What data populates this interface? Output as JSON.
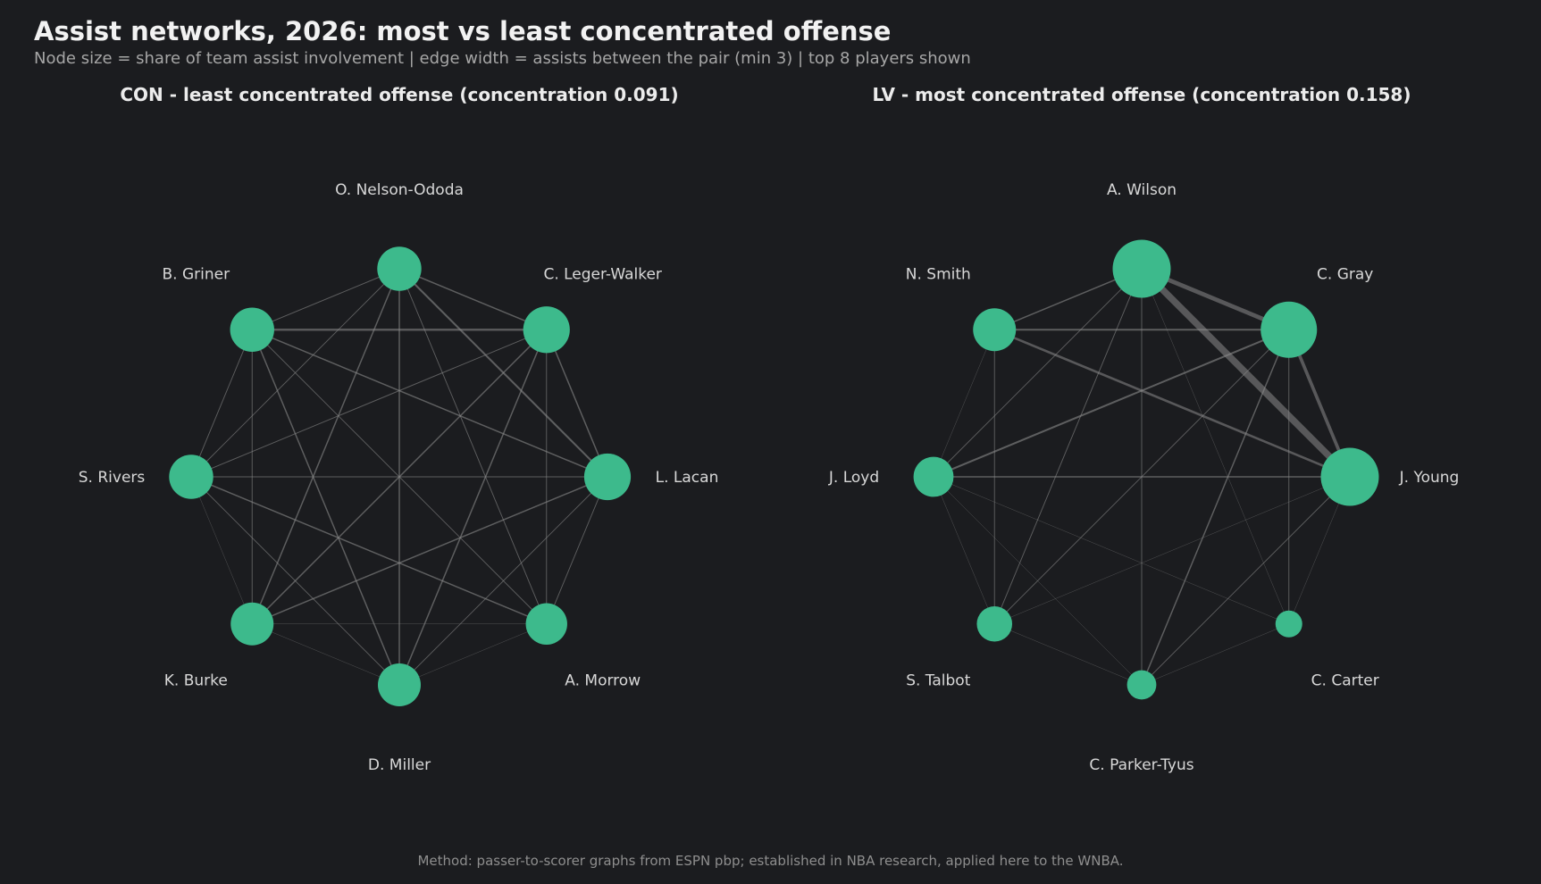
{
  "title": "Assist networks, 2026: most vs least concentrated offense",
  "subtitle": "Node size = share of team assist involvement | edge width = assists between the pair (min 3) | top 8 players shown",
  "footer": "Method: passer-to-scorer graphs from ESPN pbp; established in NBA research, applied here to the WNBA.",
  "colors": {
    "background": "#1b1c1f",
    "node": "#3dba8c",
    "edge": "#8a8a8a"
  },
  "panels": [
    {
      "team": "CON",
      "title": "CON - least concentrated offense (concentration 0.091)",
      "players": [
        {
          "name": "O. Nelson-Ododa",
          "share": 0.13
        },
        {
          "name": "C. Leger-Walker",
          "share": 0.15
        },
        {
          "name": "L. Lacan",
          "share": 0.15
        },
        {
          "name": "A. Morrow",
          "share": 0.11
        },
        {
          "name": "D. Miller",
          "share": 0.12
        },
        {
          "name": "K. Burke",
          "share": 0.12
        },
        {
          "name": "S. Rivers",
          "share": 0.13
        },
        {
          "name": "B. Griner",
          "share": 0.13
        }
      ],
      "edges": [
        {
          "a": "B. Griner",
          "b": "C. Leger-Walker",
          "assists": 7
        },
        {
          "a": "C. Leger-Walker",
          "b": "L. Lacan",
          "assists": 5
        },
        {
          "a": "O. Nelson-Ododa",
          "b": "L. Lacan",
          "assists": 6
        },
        {
          "a": "O. Nelson-Ododa",
          "b": "C. Leger-Walker",
          "assists": 5
        },
        {
          "a": "O. Nelson-Ododa",
          "b": "B. Griner",
          "assists": 4
        },
        {
          "a": "O. Nelson-Ododa",
          "b": "D. Miller",
          "assists": 5
        },
        {
          "a": "O. Nelson-Ododa",
          "b": "K. Burke",
          "assists": 5
        },
        {
          "a": "O. Nelson-Ododa",
          "b": "A. Morrow",
          "assists": 4
        },
        {
          "a": "O. Nelson-Ododa",
          "b": "S. Rivers",
          "assists": 4
        },
        {
          "a": "B. Griner",
          "b": "S. Rivers",
          "assists": 4
        },
        {
          "a": "B. Griner",
          "b": "K. Burke",
          "assists": 4
        },
        {
          "a": "B. Griner",
          "b": "D. Miller",
          "assists": 5
        },
        {
          "a": "B. Griner",
          "b": "A. Morrow",
          "assists": 4
        },
        {
          "a": "B. Griner",
          "b": "L. Lacan",
          "assists": 5
        },
        {
          "a": "C. Leger-Walker",
          "b": "A. Morrow",
          "assists": 4
        },
        {
          "a": "C. Leger-Walker",
          "b": "D. Miller",
          "assists": 5
        },
        {
          "a": "C. Leger-Walker",
          "b": "K. Burke",
          "assists": 5
        },
        {
          "a": "C. Leger-Walker",
          "b": "S. Rivers",
          "assists": 4
        },
        {
          "a": "S. Rivers",
          "b": "L. Lacan",
          "assists": 4
        },
        {
          "a": "S. Rivers",
          "b": "K. Burke",
          "assists": 3
        },
        {
          "a": "S. Rivers",
          "b": "D. Miller",
          "assists": 4
        },
        {
          "a": "S. Rivers",
          "b": "A. Morrow",
          "assists": 5
        },
        {
          "a": "L. Lacan",
          "b": "A. Morrow",
          "assists": 4
        },
        {
          "a": "L. Lacan",
          "b": "D. Miller",
          "assists": 4
        },
        {
          "a": "L. Lacan",
          "b": "K. Burke",
          "assists": 5
        },
        {
          "a": "K. Burke",
          "b": "D. Miller",
          "assists": 3
        },
        {
          "a": "K. Burke",
          "b": "A. Morrow",
          "assists": 3
        },
        {
          "a": "A. Morrow",
          "b": "D. Miller",
          "assists": 3
        }
      ]
    },
    {
      "team": "LV",
      "title": "LV - most concentrated offense (concentration 0.158)",
      "players": [
        {
          "name": "A. Wilson",
          "share": 0.26
        },
        {
          "name": "C. Gray",
          "share": 0.24
        },
        {
          "name": "J. Young",
          "share": 0.26
        },
        {
          "name": "C. Carter",
          "share": 0.03
        },
        {
          "name": "C. Parker-Tyus",
          "share": 0.04
        },
        {
          "name": "S. Talbot",
          "share": 0.07
        },
        {
          "name": "J. Loyd",
          "share": 0.1
        },
        {
          "name": "N. Smith",
          "share": 0.12
        }
      ],
      "edges": [
        {
          "a": "A. Wilson",
          "b": "J. Young",
          "assists": 16
        },
        {
          "a": "A. Wilson",
          "b": "C. Gray",
          "assists": 11
        },
        {
          "a": "C. Gray",
          "b": "J. Young",
          "assists": 9
        },
        {
          "a": "N. Smith",
          "b": "J. Young",
          "assists": 7
        },
        {
          "a": "N. Smith",
          "b": "C. Gray",
          "assists": 6
        },
        {
          "a": "J. Loyd",
          "b": "C. Gray",
          "assists": 6
        },
        {
          "a": "N. Smith",
          "b": "A. Wilson",
          "assists": 5
        },
        {
          "a": "A. Wilson",
          "b": "J. Loyd",
          "assists": 4
        },
        {
          "a": "A. Wilson",
          "b": "S. Talbot",
          "assists": 4
        },
        {
          "a": "A. Wilson",
          "b": "C. Parker-Tyus",
          "assists": 4
        },
        {
          "a": "A. Wilson",
          "b": "C. Carter",
          "assists": 3
        },
        {
          "a": "C. Gray",
          "b": "S. Talbot",
          "assists": 4
        },
        {
          "a": "C. Gray",
          "b": "C. Parker-Tyus",
          "assists": 5
        },
        {
          "a": "C. Gray",
          "b": "C. Carter",
          "assists": 4
        },
        {
          "a": "J. Young",
          "b": "J. Loyd",
          "assists": 5
        },
        {
          "a": "J. Young",
          "b": "S. Talbot",
          "assists": 3
        },
        {
          "a": "J. Young",
          "b": "C. Parker-Tyus",
          "assists": 4
        },
        {
          "a": "J. Young",
          "b": "C. Carter",
          "assists": 3
        },
        {
          "a": "N. Smith",
          "b": "J. Loyd",
          "assists": 3
        },
        {
          "a": "N. Smith",
          "b": "S. Talbot",
          "assists": 4
        },
        {
          "a": "J. Loyd",
          "b": "C. Carter",
          "assists": 3
        },
        {
          "a": "J. Loyd",
          "b": "S. Talbot",
          "assists": 3
        },
        {
          "a": "J. Loyd",
          "b": "C. Parker-Tyus",
          "assists": 3
        },
        {
          "a": "S. Talbot",
          "b": "C. Parker-Tyus",
          "assists": 3
        },
        {
          "a": "C. Parker-Tyus",
          "b": "C. Carter",
          "assists": 3
        }
      ]
    }
  ]
}
